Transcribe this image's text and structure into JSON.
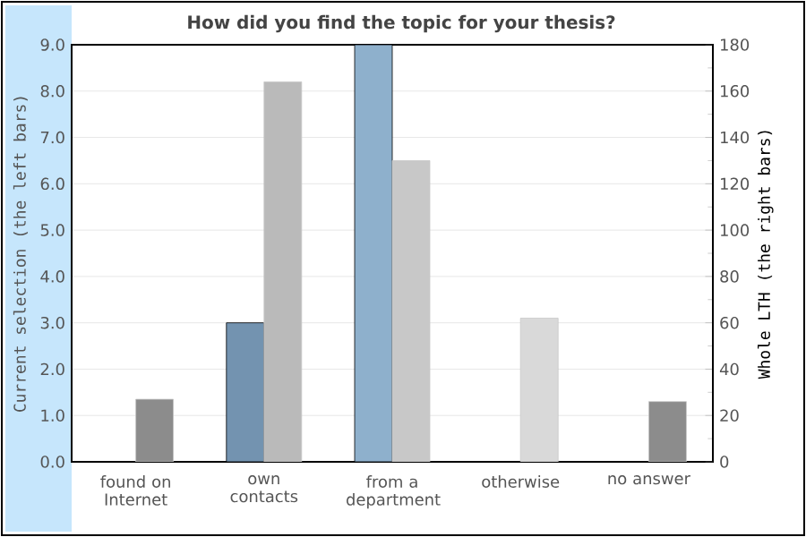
{
  "chart_data": {
    "type": "bar",
    "title": "How did you find the topic for your thesis?",
    "categories": [
      "found on Internet",
      "own contacts",
      "from a department",
      "otherwise",
      "no answer"
    ],
    "series": [
      {
        "colors": [
          "#7393b0",
          "#7393b0",
          "#8eb0cc",
          "#8eb0cc",
          "#8eb0cc"
        ],
        "values": [
          null,
          3,
          9,
          null,
          null
        ]
      },
      {
        "colors": [
          "#8c8c8c",
          "#bababa",
          "#c8c8c8",
          "#d9d9d9",
          "#8c8c8c"
        ],
        "axis": "y2",
        "values": [
          27,
          164,
          130,
          62,
          26
        ]
      }
    ],
    "ylabel": "Current selection (the left bars)",
    "y2label": "Whole LTH (the right bars)",
    "ylim": [
      0,
      9
    ],
    "yticks": [
      {
        "value": 0,
        "label": "0.0"
      },
      {
        "value": 1,
        "label": "1.0"
      },
      {
        "value": 2,
        "label": "2.0"
      },
      {
        "value": 3,
        "label": "3.0"
      },
      {
        "value": 4,
        "label": "4.0"
      },
      {
        "value": 5,
        "label": "5.0"
      },
      {
        "value": 6,
        "label": "6.0"
      },
      {
        "value": 7,
        "label": "7.0"
      },
      {
        "value": 8,
        "label": "8.0"
      },
      {
        "value": 9,
        "label": "9.0"
      }
    ],
    "y2lim": [
      0,
      180
    ],
    "y2ticks": [
      0,
      20,
      40,
      60,
      80,
      100,
      120,
      140,
      160,
      180
    ],
    "grid": "y"
  }
}
